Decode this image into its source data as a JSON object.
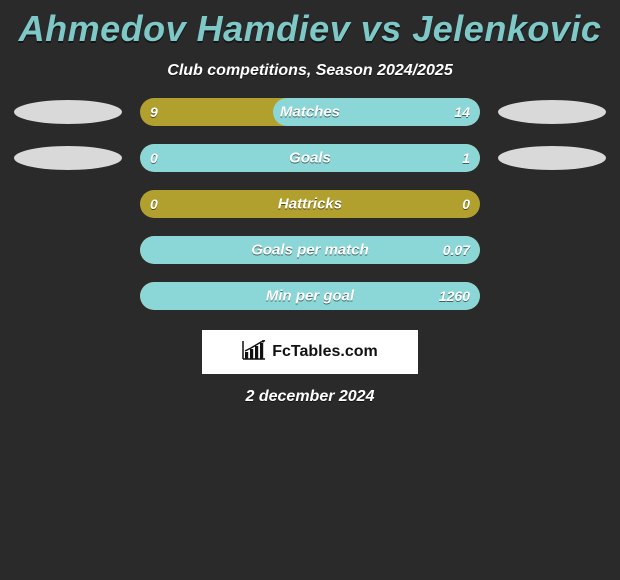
{
  "title": "Ahmedov Hamdiev vs Jelenkovic",
  "subtitle": "Club competitions, Season 2024/2025",
  "colors": {
    "left": "#b2a02e",
    "right": "#8bd6d6",
    "ellipse_left": "#d9d9d9",
    "ellipse_right": "#d9d9d9",
    "background": "#2a2a2a",
    "title_color": "#7ec8c8",
    "text_color": "#ffffff"
  },
  "rows": [
    {
      "label": "Matches",
      "left": "9",
      "right": "14",
      "right_pct": 60.9,
      "show_ellipses": true
    },
    {
      "label": "Goals",
      "left": "0",
      "right": "1",
      "right_pct": 100,
      "show_ellipses": true
    },
    {
      "label": "Hattricks",
      "left": "0",
      "right": "0",
      "right_pct": 0,
      "show_ellipses": false
    },
    {
      "label": "Goals per match",
      "left": "",
      "right": "0.07",
      "right_pct": 100,
      "show_ellipses": false
    },
    {
      "label": "Min per goal",
      "left": "",
      "right": "1260",
      "right_pct": 100,
      "show_ellipses": false
    }
  ],
  "logo": {
    "text": "FcTables.com"
  },
  "date": "2 december 2024"
}
